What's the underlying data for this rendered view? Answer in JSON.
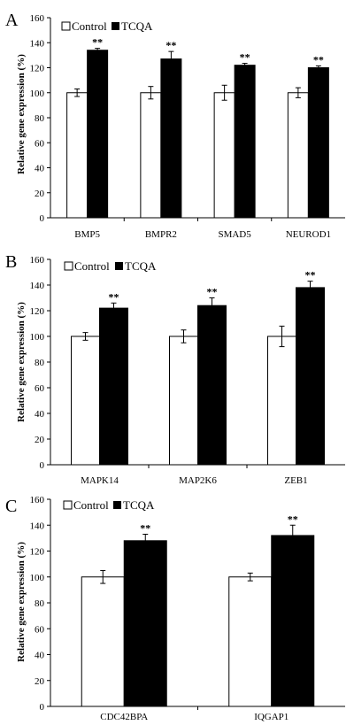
{
  "colors": {
    "control": "#ffffff",
    "tcqa": "#000000",
    "axis": "#000000"
  },
  "chart_data": [
    {
      "panel": "A",
      "type": "bar",
      "ylabel": "Relative gene expression (%)",
      "ylim": [
        0,
        160
      ],
      "yticks": [
        0,
        20,
        40,
        60,
        80,
        100,
        120,
        140,
        160
      ],
      "categories": [
        "BMP5",
        "BMPR2",
        "SMAD5",
        "NEUROD1"
      ],
      "legend": [
        "Control",
        "TCQA"
      ],
      "series": [
        {
          "name": "Control",
          "values": [
            100,
            100,
            100,
            100
          ],
          "errors": [
            3,
            5,
            6,
            4
          ]
        },
        {
          "name": "TCQA",
          "values": [
            134,
            127,
            122,
            120
          ],
          "errors": [
            1.5,
            6,
            1.5,
            1.5
          ]
        }
      ],
      "annotations": [
        "**",
        "**",
        "**",
        "**"
      ]
    },
    {
      "panel": "B",
      "type": "bar",
      "ylabel": "Relative gene expression (%)",
      "ylim": [
        0,
        160
      ],
      "yticks": [
        0,
        20,
        40,
        60,
        80,
        100,
        120,
        140,
        160
      ],
      "categories": [
        "MAPK14",
        "MAP2K6",
        "ZEB1"
      ],
      "legend": [
        "Control",
        "TCQA"
      ],
      "series": [
        {
          "name": "Control",
          "values": [
            100,
            100,
            100
          ],
          "errors": [
            3,
            5,
            8
          ]
        },
        {
          "name": "TCQA",
          "values": [
            122,
            124,
            138
          ],
          "errors": [
            4,
            6,
            5
          ]
        }
      ],
      "annotations": [
        "**",
        "**",
        "**"
      ]
    },
    {
      "panel": "C",
      "type": "bar",
      "ylabel": "Relative gene expression (%)",
      "ylim": [
        0,
        160
      ],
      "yticks": [
        0,
        20,
        40,
        60,
        80,
        100,
        120,
        140,
        160
      ],
      "categories": [
        "CDC42BPA",
        "IQGAP1"
      ],
      "legend": [
        "Control",
        "TCQA"
      ],
      "series": [
        {
          "name": "Control",
          "values": [
            100,
            100
          ],
          "errors": [
            5,
            3
          ]
        },
        {
          "name": "TCQA",
          "values": [
            128,
            132
          ],
          "errors": [
            5,
            8
          ]
        }
      ],
      "annotations": [
        "**",
        "**"
      ]
    }
  ]
}
